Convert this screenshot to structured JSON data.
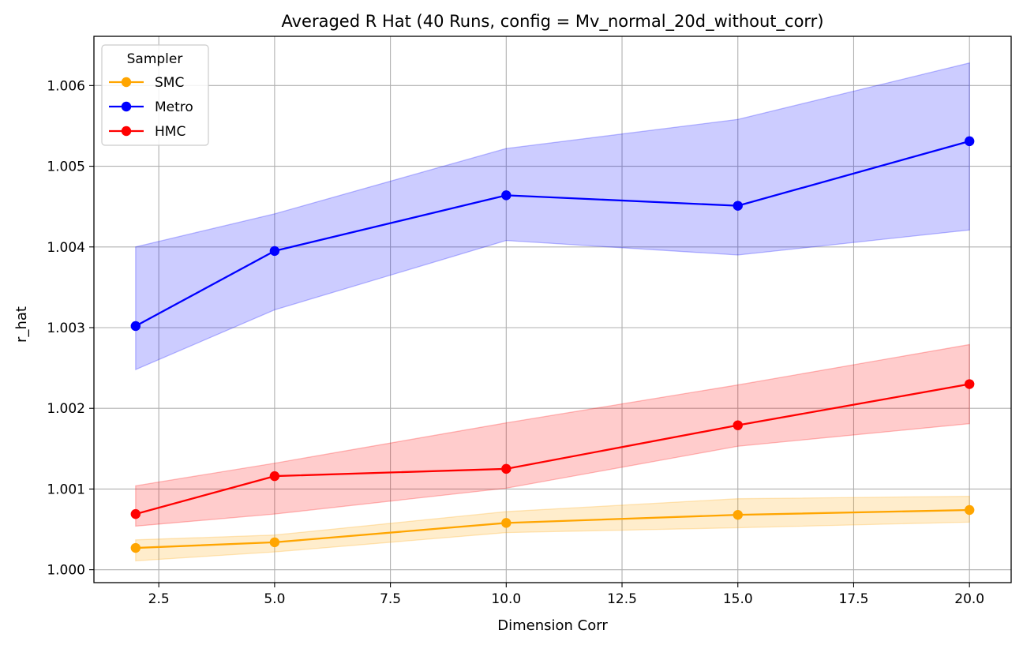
{
  "chart_data": {
    "type": "line",
    "title": "Averaged R Hat (40 Runs, config = Mv_normal_20d_without_corr)",
    "xlabel": "Dimension Corr",
    "ylabel": "r_hat",
    "xlim": [
      1.1,
      20.9
    ],
    "ylim": [
      0.99984,
      1.00661
    ],
    "xticks": [
      2.5,
      5.0,
      7.5,
      10.0,
      12.5,
      15.0,
      17.5,
      20.0
    ],
    "xtick_labels": [
      "2.5",
      "5.0",
      "7.5",
      "10.0",
      "12.5",
      "15.0",
      "17.5",
      "20.0"
    ],
    "yticks": [
      1.0,
      1.001,
      1.002,
      1.003,
      1.004,
      1.005,
      1.006
    ],
    "ytick_labels": [
      "1.000",
      "1.001",
      "1.002",
      "1.003",
      "1.004",
      "1.005",
      "1.006"
    ],
    "grid": true,
    "legend": {
      "title": "Sampler",
      "placement": "top-left"
    },
    "x": [
      2,
      5,
      10,
      15,
      20
    ],
    "series": [
      {
        "name": "SMC",
        "color": "#ffa500",
        "values": [
          1.00027,
          1.00034,
          1.00058,
          1.00068,
          1.00074
        ],
        "lower": [
          1.00011,
          1.00022,
          1.00046,
          1.00052,
          1.00059
        ],
        "upper": [
          1.00037,
          1.00043,
          1.00072,
          1.00088,
          1.00091
        ]
      },
      {
        "name": "Metro",
        "color": "#0000ff",
        "values": [
          1.00302,
          1.00395,
          1.00464,
          1.00451,
          1.00531
        ],
        "lower": [
          1.00248,
          1.00322,
          1.00408,
          1.0039,
          1.00421
        ],
        "upper": [
          1.004,
          1.00441,
          1.00522,
          1.00558,
          1.00628
        ]
      },
      {
        "name": "HMC",
        "color": "#ff0000",
        "values": [
          1.00069,
          1.00116,
          1.00125,
          1.00179,
          1.0023
        ],
        "lower": [
          1.00054,
          1.00069,
          1.00101,
          1.00153,
          1.00181
        ],
        "upper": [
          1.00104,
          1.00132,
          1.00182,
          1.00229,
          1.00279
        ]
      }
    ]
  }
}
